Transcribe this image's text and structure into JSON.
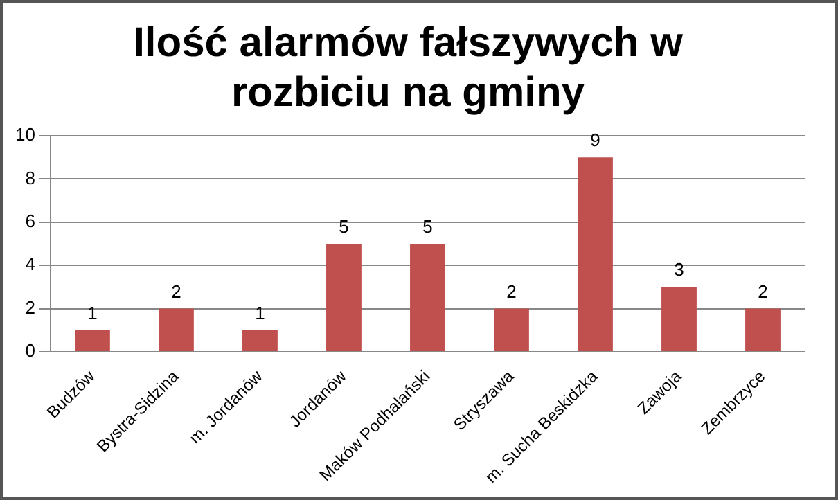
{
  "chart_data": {
    "type": "bar",
    "title": "Ilość alarmów fałszywych w rozbiciu na gminy",
    "categories": [
      "Budzów",
      "Bystra-Sidzina",
      "m. Jordanów",
      "Jordanów",
      "Maków Podhalański",
      "Stryszawa",
      "m. Sucha Beskidzka",
      "Zawoja",
      "Zembrzyce"
    ],
    "values": [
      1,
      2,
      1,
      5,
      5,
      2,
      9,
      3,
      2
    ],
    "color": "#c0504d",
    "ylim": [
      0,
      10
    ],
    "yticks": [
      0,
      2,
      4,
      6,
      8,
      10
    ],
    "grid": "y",
    "legend": false,
    "data_labels": true
  }
}
